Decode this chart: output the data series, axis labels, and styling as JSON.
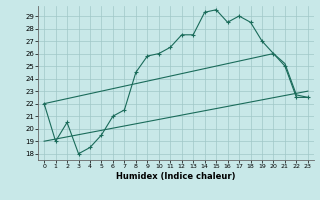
{
  "xlabel": "Humidex (Indice chaleur)",
  "bg_color": "#c8e8e8",
  "grid_color": "#a0c8c8",
  "line_color": "#1a6b5a",
  "xlim": [
    -0.5,
    23.5
  ],
  "ylim": [
    17.5,
    29.8
  ],
  "yticks": [
    18,
    19,
    20,
    21,
    22,
    23,
    24,
    25,
    26,
    27,
    28,
    29
  ],
  "xticks": [
    0,
    1,
    2,
    3,
    4,
    5,
    6,
    7,
    8,
    9,
    10,
    11,
    12,
    13,
    14,
    15,
    16,
    17,
    18,
    19,
    20,
    21,
    22,
    23
  ],
  "curve_x": [
    0,
    1,
    2,
    3,
    4,
    5,
    6,
    7,
    8,
    9,
    10,
    11,
    12,
    13,
    14,
    15,
    16,
    17,
    18,
    19,
    20,
    21,
    22,
    23
  ],
  "curve_y": [
    22,
    19,
    20.5,
    18,
    18.5,
    19.5,
    21,
    21.5,
    24.5,
    25.8,
    26,
    26.5,
    27.5,
    27.5,
    29.3,
    29.5,
    28.5,
    29.0,
    28.5,
    27,
    26.0,
    25.0,
    22.5,
    22.5
  ],
  "line1_x": [
    0,
    20,
    21,
    22,
    23
  ],
  "line1_y": [
    22,
    26,
    25.2,
    22.7,
    22.5
  ],
  "line2_x": [
    0,
    23
  ],
  "line2_y": [
    19,
    23
  ]
}
